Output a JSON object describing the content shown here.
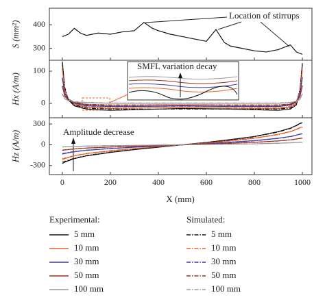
{
  "chart_data": [
    {
      "type": "line",
      "ylabel": "S (mm²)",
      "x": [
        0,
        25,
        50,
        75,
        100,
        150,
        200,
        250,
        300,
        340,
        375,
        400,
        450,
        500,
        550,
        600,
        640,
        675,
        700,
        750,
        800,
        850,
        900,
        950,
        975,
        1000
      ],
      "values": [
        350,
        360,
        385,
        365,
        355,
        365,
        360,
        370,
        375,
        410,
        385,
        375,
        360,
        350,
        340,
        330,
        380,
        325,
        310,
        300,
        290,
        285,
        295,
        315,
        285,
        275
      ],
      "color": "#111111",
      "ylim": [
        250,
        470
      ],
      "yticks": [
        300,
        400
      ],
      "annotation": "Location of stirrups"
    },
    {
      "type": "line",
      "ylabel": "Hx (A/m)",
      "x": [
        0,
        10,
        25,
        50,
        100,
        200,
        300,
        400,
        500,
        600,
        700,
        800,
        900,
        950,
        975,
        990,
        1000
      ],
      "ylim": [
        -45,
        134
      ],
      "yticks": [
        0,
        100
      ],
      "annotation": "SMFL variation decay",
      "legend_titles": [
        "Experimental:",
        "Simulated:"
      ],
      "series": [
        {
          "name": "5 mm",
          "color": "#111111",
          "dash": "solid",
          "values": [
            130,
            45,
            10,
            -8,
            -18,
            -22,
            -20,
            -18,
            -16,
            -17,
            -18,
            -20,
            -22,
            -18,
            -5,
            40,
            120
          ]
        },
        {
          "name": "10 mm",
          "color": "#e8622c",
          "dash": "solid",
          "values": [
            110,
            40,
            12,
            -4,
            -12,
            -16,
            -15,
            -14,
            -13,
            -14,
            -15,
            -16,
            -16,
            -12,
            0,
            35,
            105
          ]
        },
        {
          "name": "30 mm",
          "color": "#3a3aa8",
          "dash": "solid",
          "values": [
            80,
            30,
            12,
            0,
            -8,
            -10,
            -10,
            -9,
            -8,
            -9,
            -10,
            -10,
            -10,
            -6,
            4,
            28,
            80
          ]
        },
        {
          "name": "50 mm",
          "color": "#a0301a",
          "dash": "solid",
          "values": [
            55,
            22,
            10,
            2,
            -4,
            -6,
            -6,
            -5,
            -5,
            -5,
            -6,
            -6,
            -6,
            -3,
            6,
            20,
            55
          ]
        },
        {
          "name": "100 mm",
          "color": "#999999",
          "dash": "solid",
          "values": [
            30,
            14,
            8,
            4,
            2,
            0,
            0,
            0,
            0,
            0,
            0,
            0,
            0,
            2,
            6,
            12,
            30
          ]
        },
        {
          "name": "5 mm",
          "color": "#111111",
          "dash": "dashdot",
          "values": [
            125,
            50,
            12,
            -5,
            -15,
            -18,
            -18,
            -18,
            -18,
            -18,
            -18,
            -18,
            -18,
            -15,
            -2,
            45,
            125
          ]
        },
        {
          "name": "10 mm",
          "color": "#e8622c",
          "dash": "dashdot",
          "values": [
            105,
            42,
            14,
            -2,
            -10,
            -14,
            -14,
            -14,
            -14,
            -14,
            -14,
            -14,
            -14,
            -10,
            2,
            38,
            108
          ]
        },
        {
          "name": "30 mm",
          "color": "#3a3aa8",
          "dash": "dashdot",
          "values": [
            78,
            32,
            14,
            2,
            -6,
            -9,
            -9,
            -9,
            -9,
            -9,
            -9,
            -9,
            -9,
            -5,
            6,
            30,
            82
          ]
        },
        {
          "name": "50 mm",
          "color": "#a0301a",
          "dash": "dashdot",
          "values": [
            52,
            24,
            12,
            3,
            -3,
            -5,
            -5,
            -5,
            -5,
            -5,
            -5,
            -5,
            -5,
            -2,
            7,
            22,
            56
          ]
        },
        {
          "name": "100 mm",
          "color": "#999999",
          "dash": "dashdot",
          "values": [
            28,
            15,
            9,
            5,
            3,
            1,
            1,
            1,
            1,
            1,
            1,
            1,
            1,
            3,
            7,
            14,
            30
          ]
        }
      ]
    },
    {
      "type": "line",
      "ylabel": "Hz (A/m)",
      "xlabel": "X (mm)",
      "x": [
        0,
        10,
        25,
        50,
        100,
        200,
        300,
        400,
        500,
        600,
        700,
        800,
        900,
        950,
        975,
        990,
        1000
      ],
      "xlim": [
        -54,
        1040
      ],
      "xticks": [
        0,
        200,
        400,
        600,
        800,
        1000
      ],
      "ylim": [
        -430,
        390
      ],
      "yticks": [
        -300,
        0,
        300
      ],
      "annotation": "Amplitude decrease",
      "series": [
        {
          "color": "#111111",
          "dash": "solid",
          "values": [
            -270,
            -250,
            -230,
            -200,
            -160,
            -110,
            -70,
            -35,
            0,
            35,
            75,
            120,
            190,
            240,
            280,
            310,
            320
          ]
        },
        {
          "color": "#e8622c",
          "dash": "solid",
          "values": [
            -215,
            -200,
            -185,
            -160,
            -128,
            -88,
            -56,
            -28,
            0,
            28,
            60,
            96,
            152,
            192,
            224,
            248,
            256
          ]
        },
        {
          "color": "#3a3aa8",
          "dash": "solid",
          "values": [
            -135,
            -125,
            -115,
            -100,
            -80,
            -55,
            -35,
            -18,
            0,
            18,
            38,
            60,
            95,
            120,
            140,
            155,
            160
          ]
        },
        {
          "color": "#a0301a",
          "dash": "solid",
          "values": [
            -80,
            -75,
            -70,
            -60,
            -48,
            -33,
            -21,
            -10,
            0,
            10,
            22,
            36,
            57,
            72,
            84,
            93,
            96
          ]
        },
        {
          "color": "#999999",
          "dash": "solid",
          "values": [
            -32,
            -30,
            -28,
            -24,
            -19,
            -13,
            -8,
            -4,
            0,
            4,
            9,
            14,
            23,
            29,
            34,
            37,
            38
          ]
        },
        {
          "color": "#111111",
          "dash": "dashdot",
          "values": [
            -250,
            -240,
            -220,
            -195,
            -155,
            -105,
            -68,
            -33,
            0,
            33,
            70,
            115,
            185,
            235,
            275,
            305,
            315
          ]
        },
        {
          "color": "#e8622c",
          "dash": "dashdot",
          "values": [
            -200,
            -192,
            -176,
            -156,
            -124,
            -84,
            -54,
            -26,
            0,
            26,
            56,
            92,
            148,
            188,
            220,
            244,
            252
          ]
        },
        {
          "color": "#3a3aa8",
          "dash": "dashdot",
          "values": [
            -125,
            -120,
            -110,
            -97,
            -77,
            -52,
            -34,
            -16,
            0,
            16,
            35,
            57,
            92,
            117,
            137,
            152,
            157
          ]
        },
        {
          "color": "#a0301a",
          "dash": "dashdot",
          "values": [
            -75,
            -72,
            -66,
            -58,
            -46,
            -31,
            -20,
            -10,
            0,
            10,
            21,
            34,
            55,
            70,
            82,
            91,
            94
          ]
        },
        {
          "color": "#999999",
          "dash": "dashdot",
          "values": [
            -30,
            -29,
            -26,
            -23,
            -18,
            -12,
            -8,
            -4,
            0,
            4,
            8,
            14,
            22,
            28,
            33,
            36,
            37
          ]
        }
      ]
    }
  ]
}
